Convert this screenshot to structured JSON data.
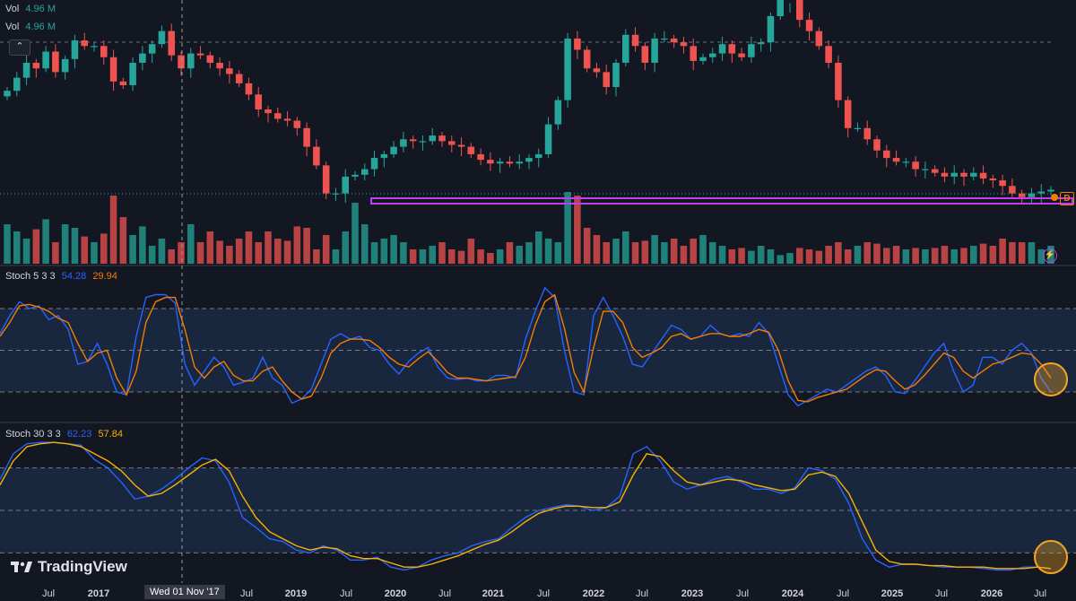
{
  "legend": {
    "vol1": {
      "name": "Vol",
      "value": "4.96 M"
    },
    "vol2": {
      "name": "Vol",
      "value": "4.96 M"
    },
    "stoch_fast": {
      "name": "Stoch 5 3 3",
      "k": "54.28",
      "d": "29.94"
    },
    "stoch_slow": {
      "name": "Stoch 30 3 3",
      "k": "62.23",
      "d": "57.84"
    }
  },
  "crosshair_label": "Wed 01 Nov '17",
  "watermark": "TradingView",
  "price_badge": "D",
  "collapse_icon": "chevron-up-icon",
  "alert_icon": "lightning-icon",
  "colors": {
    "background": "#131722",
    "up": "#26a69a",
    "down": "#ef5350",
    "support_band": "#c03ef0",
    "stoch_k": "#2962ff",
    "stoch_fast_d": "#f57c00",
    "stoch_slow_d": "#f6b200",
    "highlight_circle": "#f6a623",
    "band_fill": "#1a2a42"
  },
  "chart_data": [
    {
      "type": "candlestick",
      "title": "",
      "x_ticks": [
        "Jul",
        "2017",
        "Wed 01 Nov '17",
        "Jul",
        "2019",
        "Jul",
        "2020",
        "Jul",
        "2021",
        "Jul",
        "2022",
        "Jul",
        "2023",
        "Jul",
        "2024",
        "Jul",
        "2025",
        "Jul",
        "2026",
        "Jul"
      ],
      "close": [
        60,
        67,
        75,
        72,
        81,
        70,
        77,
        87,
        84,
        84,
        78,
        65,
        63,
        75,
        80,
        85,
        92,
        79,
        72,
        80,
        79,
        75,
        72,
        69,
        64,
        58,
        50,
        48,
        45,
        44,
        40,
        30,
        20,
        5,
        5,
        14,
        15,
        18,
        24,
        26,
        30,
        34,
        33,
        33,
        36,
        33,
        31,
        30,
        26,
        23,
        21,
        22,
        21,
        22,
        24,
        26,
        42,
        55,
        88,
        82,
        72,
        70,
        62,
        75,
        90,
        84,
        75,
        88,
        88,
        86,
        84,
        76,
        78,
        80,
        85,
        80,
        78,
        85,
        86,
        100,
        110,
        110,
        98,
        92,
        84,
        75,
        55,
        40,
        40,
        34,
        28,
        24,
        22,
        22,
        18,
        18,
        16,
        14,
        16,
        14,
        16,
        13,
        12,
        9,
        5,
        3,
        5,
        6,
        7
      ],
      "volume_relative": [
        0.55,
        0.45,
        0.35,
        0.48,
        0.62,
        0.3,
        0.55,
        0.5,
        0.38,
        0.3,
        0.42,
        0.95,
        0.65,
        0.4,
        0.52,
        0.25,
        0.35,
        0.2,
        0.3,
        0.55,
        0.3,
        0.45,
        0.32,
        0.25,
        0.35,
        0.45,
        0.3,
        0.45,
        0.35,
        0.32,
        0.52,
        0.5,
        0.2,
        0.4,
        0.2,
        0.45,
        0.85,
        0.55,
        0.3,
        0.35,
        0.4,
        0.3,
        0.2,
        0.2,
        0.25,
        0.3,
        0.2,
        0.18,
        0.35,
        0.2,
        0.15,
        0.2,
        0.3,
        0.25,
        0.3,
        0.45,
        0.35,
        0.3,
        1.0,
        0.95,
        0.5,
        0.4,
        0.3,
        0.35,
        0.45,
        0.3,
        0.32,
        0.4,
        0.3,
        0.35,
        0.25,
        0.35,
        0.4,
        0.3,
        0.25,
        0.2,
        0.22,
        0.18,
        0.25,
        0.2,
        0.12,
        0.15,
        0.22,
        0.2,
        0.18,
        0.25,
        0.3,
        0.2,
        0.25,
        0.3,
        0.28,
        0.22,
        0.25,
        0.2,
        0.22,
        0.2,
        0.22,
        0.25,
        0.2,
        0.22,
        0.25,
        0.28,
        0.25,
        0.35,
        0.3,
        0.3,
        0.3,
        0.2,
        0.25
      ]
    },
    {
      "type": "line",
      "title": "Stoch 5 3 3",
      "ylim": [
        0,
        100
      ],
      "levels": [
        80,
        50,
        20
      ],
      "series": [
        {
          "name": "K",
          "color": "#2962ff",
          "values": [
            62,
            75,
            85,
            80,
            82,
            72,
            75,
            65,
            40,
            42,
            55,
            40,
            20,
            18,
            60,
            88,
            90,
            90,
            84,
            40,
            25,
            35,
            45,
            38,
            25,
            27,
            30,
            45,
            30,
            25,
            12,
            15,
            22,
            40,
            58,
            62,
            58,
            60,
            52,
            50,
            40,
            33,
            42,
            48,
            52,
            38,
            30,
            29,
            30,
            28,
            28,
            32,
            32,
            30,
            58,
            78,
            95,
            88,
            50,
            20,
            18,
            75,
            88,
            75,
            60,
            40,
            38,
            48,
            58,
            68,
            65,
            58,
            60,
            68,
            62,
            60,
            62,
            60,
            70,
            62,
            40,
            18,
            10,
            14,
            18,
            22,
            20,
            25,
            30,
            35,
            38,
            32,
            20,
            19,
            28,
            38,
            48,
            55,
            35,
            20,
            25,
            45,
            45,
            40,
            50,
            55,
            48,
            30,
            20
          ]
        },
        {
          "name": "D",
          "color": "#f57c00",
          "values": [
            60,
            70,
            82,
            83,
            81,
            78,
            73,
            70,
            55,
            42,
            48,
            50,
            30,
            18,
            35,
            70,
            85,
            88,
            88,
            65,
            38,
            30,
            38,
            42,
            32,
            28,
            28,
            35,
            38,
            28,
            20,
            15,
            17,
            30,
            48,
            55,
            58,
            58,
            57,
            52,
            45,
            40,
            38,
            44,
            49,
            42,
            34,
            30,
            30,
            29,
            28,
            29,
            30,
            31,
            45,
            68,
            85,
            90,
            66,
            34,
            20,
            52,
            78,
            78,
            70,
            52,
            45,
            48,
            52,
            60,
            62,
            58,
            60,
            62,
            62,
            60,
            60,
            62,
            65,
            63,
            50,
            28,
            14,
            13,
            16,
            18,
            20,
            22,
            27,
            32,
            36,
            35,
            28,
            22,
            25,
            32,
            40,
            48,
            45,
            35,
            30,
            35,
            40,
            42,
            45,
            48,
            47,
            40,
            30
          ]
        }
      ]
    },
    {
      "type": "line",
      "title": "Stoch 30 3 3",
      "ylim": [
        0,
        100
      ],
      "levels": [
        80,
        50,
        20
      ],
      "series": [
        {
          "name": "K",
          "color": "#2962ff",
          "values": [
            72,
            90,
            97,
            98,
            98,
            97,
            96,
            86,
            80,
            70,
            58,
            60,
            65,
            72,
            80,
            87,
            85,
            70,
            45,
            38,
            30,
            28,
            22,
            20,
            25,
            22,
            15,
            15,
            17,
            10,
            8,
            10,
            15,
            18,
            20,
            25,
            28,
            30,
            38,
            45,
            50,
            52,
            54,
            53,
            50,
            52,
            60,
            90,
            95,
            85,
            70,
            65,
            68,
            72,
            74,
            70,
            65,
            65,
            62,
            66,
            80,
            78,
            72,
            55,
            30,
            15,
            10,
            12,
            12,
            11,
            10,
            10,
            10,
            9,
            8,
            8,
            10,
            10,
            9
          ]
        },
        {
          "name": "D",
          "color": "#f6b200",
          "values": [
            68,
            85,
            95,
            97,
            98,
            97,
            95,
            90,
            85,
            78,
            68,
            60,
            62,
            68,
            75,
            82,
            86,
            78,
            60,
            45,
            35,
            30,
            25,
            22,
            24,
            23,
            18,
            16,
            16,
            13,
            10,
            10,
            12,
            15,
            18,
            22,
            26,
            29,
            35,
            42,
            48,
            51,
            53,
            53,
            52,
            52,
            56,
            75,
            90,
            88,
            78,
            70,
            68,
            70,
            72,
            71,
            68,
            66,
            64,
            65,
            75,
            77,
            74,
            62,
            42,
            22,
            14,
            12,
            12,
            11,
            11,
            10,
            10,
            10,
            9,
            9,
            9,
            10,
            9
          ]
        }
      ]
    }
  ]
}
